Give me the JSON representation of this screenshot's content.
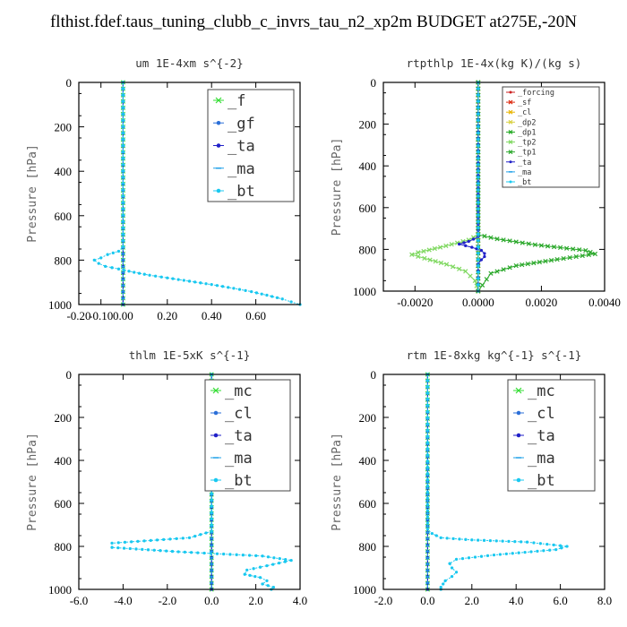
{
  "page_title": "flthist.fdef.taus_tuning_clubb_c_invrs_tau_n2_xp2m  BUDGET at275E,-20N",
  "chart_data": [
    {
      "type": "line",
      "title": "um   1E-4xm s^{-2}",
      "ylabel": "Pressure [hPa]",
      "xlim": [
        -0.2,
        0.8
      ],
      "ylim": [
        0,
        1000
      ],
      "y_inverted": true,
      "xticks": [
        "-0.20",
        "-0.10",
        "0.00",
        "0.20",
        "0.40",
        "0.60"
      ],
      "xtick_values": [
        -0.2,
        -0.1,
        0,
        0.2,
        0.4,
        0.6
      ],
      "yticks": [
        "0",
        "200",
        "400",
        "600",
        "800",
        "1000"
      ],
      "legend": {
        "position": "top-right",
        "size": "large"
      },
      "series": [
        {
          "name": "_f",
          "color": "#33dd33",
          "marker": "x",
          "points": [
            [
              0,
              0
            ],
            [
              0,
              1000
            ]
          ]
        },
        {
          "name": "_gf",
          "color": "#2b6fd8",
          "marker": "dot",
          "points": [
            [
              0,
              0
            ],
            [
              0,
              1000
            ]
          ]
        },
        {
          "name": "_ta",
          "color": "#2020c8",
          "marker": "dot",
          "points": [
            [
              0,
              0
            ],
            [
              0,
              1000
            ]
          ]
        },
        {
          "name": "_ma",
          "color": "#1fa0e8",
          "marker": "dash",
          "points": [
            [
              0,
              0
            ],
            [
              0,
              1000
            ]
          ]
        },
        {
          "name": "_bt",
          "color": "#19c8f0",
          "marker": "dot",
          "points": [
            [
              0,
              0
            ],
            [
              0,
              740
            ],
            [
              -0.02,
              760
            ],
            [
              -0.07,
              775
            ],
            [
              -0.1,
              790
            ],
            [
              -0.13,
              800
            ],
            [
              -0.11,
              815
            ],
            [
              -0.08,
              828
            ],
            [
              -0.02,
              840
            ],
            [
              0.05,
              855
            ],
            [
              0.12,
              868
            ],
            [
              0.2,
              880
            ],
            [
              0.3,
              895
            ],
            [
              0.4,
              910
            ],
            [
              0.5,
              927
            ],
            [
              0.58,
              942
            ],
            [
              0.65,
              958
            ],
            [
              0.72,
              975
            ],
            [
              0.76,
              988
            ],
            [
              0.8,
              1000
            ]
          ]
        }
      ]
    },
    {
      "type": "line",
      "title": "rtpthlp   1E-4x(kg K)/(kg s)",
      "ylabel": "Pressure [hPa]",
      "xlim": [
        -0.003,
        0.004
      ],
      "ylim": [
        0,
        1000
      ],
      "y_inverted": true,
      "xticks": [
        "-0.0020",
        "0.0000",
        "0.0020",
        "0.0040"
      ],
      "xtick_values": [
        -0.002,
        0,
        0.002,
        0.004
      ],
      "yticks": [
        "0",
        "200",
        "400",
        "600",
        "800",
        "1000"
      ],
      "legend": {
        "position": "top-right",
        "size": "small"
      },
      "series": [
        {
          "name": "_forcing",
          "color": "#cc2020",
          "marker": "dot",
          "points": [
            [
              0,
              0
            ],
            [
              0,
              1000
            ]
          ]
        },
        {
          "name": "_sf",
          "color": "#dd2a10",
          "marker": "x",
          "points": [
            [
              0,
              0
            ],
            [
              0,
              1000
            ]
          ]
        },
        {
          "name": "_cl",
          "color": "#e8b400",
          "marker": "x",
          "points": [
            [
              0,
              0
            ],
            [
              0,
              1000
            ]
          ]
        },
        {
          "name": "_dp2",
          "color": "#d8d040",
          "marker": "x",
          "points": [
            [
              0,
              0
            ],
            [
              0,
              1000
            ]
          ]
        },
        {
          "name": "_dp1",
          "color": "#22aa22",
          "marker": "x",
          "points": [
            [
              0,
              0
            ],
            [
              0,
              1000
            ]
          ]
        },
        {
          "name": "_tp2",
          "color": "#7fd860",
          "marker": "x",
          "points": [
            [
              0,
              0
            ],
            [
              0,
              730
            ],
            [
              -0.0003,
              755
            ],
            [
              -0.0012,
              790
            ],
            [
              -0.0019,
              815
            ],
            [
              -0.0021,
              825
            ],
            [
              -0.0017,
              843
            ],
            [
              -0.001,
              872
            ],
            [
              -0.0004,
              905
            ],
            [
              -0.0001,
              950
            ],
            [
              0,
              1000
            ]
          ]
        },
        {
          "name": "_tp1",
          "color": "#2aa82a",
          "marker": "x",
          "points": [
            [
              0,
              0
            ],
            [
              0,
              730
            ],
            [
              0.0006,
              750
            ],
            [
              0.0018,
              778
            ],
            [
              0.0034,
              805
            ],
            [
              0.0037,
              822
            ],
            [
              0.0025,
              848
            ],
            [
              0.0012,
              878
            ],
            [
              0.0004,
              915
            ],
            [
              0,
              1000
            ]
          ]
        },
        {
          "name": "_ta",
          "color": "#2020c8",
          "marker": "dot",
          "points": [
            [
              0,
              0
            ],
            [
              0,
              740
            ],
            [
              -0.0003,
              762
            ],
            [
              -0.0006,
              775
            ],
            [
              -0.0002,
              790
            ],
            [
              0.0001,
              805
            ],
            [
              0.0002,
              820
            ],
            [
              0.0002,
              835
            ],
            [
              0.0001,
              850
            ],
            [
              0,
              870
            ],
            [
              0,
              1000
            ]
          ]
        },
        {
          "name": "_ma",
          "color": "#1fa0e8",
          "marker": "dash",
          "points": [
            [
              0,
              0
            ],
            [
              0,
              1000
            ]
          ]
        },
        {
          "name": "_bt",
          "color": "#19c8f0",
          "marker": "dot",
          "points": [
            [
              0,
              0
            ],
            [
              0,
              1000
            ]
          ]
        }
      ]
    },
    {
      "type": "line",
      "title": "thlm   1E-5xK s^{-1}",
      "ylabel": "Pressure [hPa]",
      "xlim": [
        -6,
        4
      ],
      "ylim": [
        0,
        1000
      ],
      "y_inverted": true,
      "xticks": [
        "-6.0",
        "-4.0",
        "-2.0",
        "0.0",
        "2.0",
        "4.0"
      ],
      "xtick_values": [
        -6,
        -4,
        -2,
        0,
        2,
        4
      ],
      "yticks": [
        "0",
        "200",
        "400",
        "600",
        "800",
        "1000"
      ],
      "legend": {
        "position": "top-right",
        "size": "large"
      },
      "series": [
        {
          "name": "_mc",
          "color": "#33dd33",
          "marker": "x",
          "points": [
            [
              0,
              0
            ],
            [
              0,
              1000
            ]
          ]
        },
        {
          "name": "_cl",
          "color": "#2b6fd8",
          "marker": "dot",
          "points": [
            [
              0,
              0
            ],
            [
              0,
              1000
            ]
          ]
        },
        {
          "name": "_ta",
          "color": "#2020c8",
          "marker": "dot",
          "points": [
            [
              0,
              0
            ],
            [
              0,
              1000
            ]
          ]
        },
        {
          "name": "_ma",
          "color": "#1fa0e8",
          "marker": "dash",
          "points": [
            [
              0,
              0
            ],
            [
              0,
              1000
            ]
          ]
        },
        {
          "name": "_bt",
          "color": "#19c8f0",
          "marker": "dot",
          "points": [
            [
              0,
              0
            ],
            [
              0,
              730
            ],
            [
              -1,
              760
            ],
            [
              -4.5,
              785
            ],
            [
              -4.5,
              805
            ],
            [
              -1.5,
              825
            ],
            [
              2.3,
              845
            ],
            [
              3.6,
              865
            ],
            [
              2.5,
              890
            ],
            [
              1.6,
              910
            ],
            [
              1.5,
              930
            ],
            [
              2.2,
              945
            ],
            [
              2.5,
              960
            ],
            [
              2.3,
              975
            ],
            [
              2.8,
              990
            ],
            [
              2.7,
              1000
            ]
          ]
        }
      ]
    },
    {
      "type": "line",
      "title": "rtm   1E-8xkg kg^{-1} s^{-1}",
      "ylabel": "Pressure [hPa]",
      "xlim": [
        -2,
        8
      ],
      "ylim": [
        0,
        1000
      ],
      "y_inverted": true,
      "xticks": [
        "-2.0",
        "0.0",
        "2.0",
        "4.0",
        "6.0",
        "8.0"
      ],
      "xtick_values": [
        -2,
        0,
        2,
        4,
        6,
        8
      ],
      "yticks": [
        "0",
        "200",
        "400",
        "600",
        "800",
        "1000"
      ],
      "legend": {
        "position": "top-right",
        "size": "large"
      },
      "series": [
        {
          "name": "_mc",
          "color": "#33dd33",
          "marker": "x",
          "points": [
            [
              0,
              0
            ],
            [
              0,
              1000
            ]
          ]
        },
        {
          "name": "_cl",
          "color": "#2b6fd8",
          "marker": "dot",
          "points": [
            [
              0,
              0
            ],
            [
              0,
              1000
            ]
          ]
        },
        {
          "name": "_ta",
          "color": "#2020c8",
          "marker": "dot",
          "points": [
            [
              0,
              0
            ],
            [
              0,
              1000
            ]
          ]
        },
        {
          "name": "_ma",
          "color": "#1fa0e8",
          "marker": "dash",
          "points": [
            [
              0,
              0
            ],
            [
              0,
              1000
            ]
          ]
        },
        {
          "name": "_bt",
          "color": "#19c8f0",
          "marker": "dot",
          "points": [
            [
              0,
              0
            ],
            [
              0,
              720
            ],
            [
              0.2,
              740
            ],
            [
              0.6,
              760
            ],
            [
              2,
              770
            ],
            [
              4.5,
              780
            ],
            [
              6.3,
              800
            ],
            [
              5.8,
              815
            ],
            [
              3,
              840
            ],
            [
              1.3,
              860
            ],
            [
              1,
              880
            ],
            [
              1.1,
              900
            ],
            [
              1.3,
              920
            ],
            [
              1.1,
              940
            ],
            [
              0.8,
              960
            ],
            [
              0.7,
              975
            ],
            [
              0.6,
              990
            ],
            [
              0.6,
              1000
            ]
          ]
        }
      ]
    }
  ]
}
